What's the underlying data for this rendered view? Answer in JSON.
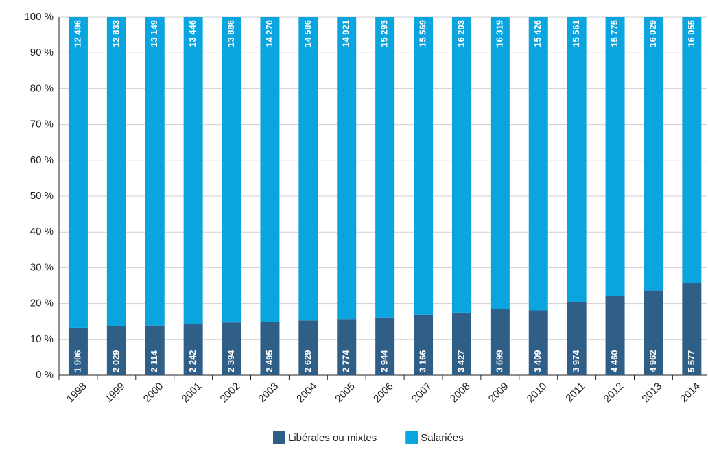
{
  "chart_data": {
    "type": "bar",
    "stacking": "percent",
    "categories": [
      "1998",
      "1999",
      "2000",
      "2001",
      "2002",
      "2003",
      "2004",
      "2005",
      "2006",
      "2007",
      "2008",
      "2009",
      "2010",
      "2011",
      "2012",
      "2013",
      "2014"
    ],
    "series": [
      {
        "name": "Libérales ou mixtes",
        "color": "#2f5f87",
        "values": [
          1906,
          2029,
          2114,
          2242,
          2394,
          2495,
          2629,
          2774,
          2944,
          3166,
          3427,
          3699,
          3409,
          3974,
          4460,
          4962,
          5577
        ],
        "value_labels": [
          "1 906",
          "2 029",
          "2 114",
          "2 242",
          "2 394",
          "2 495",
          "2 629",
          "2 774",
          "2 944",
          "3 166",
          "3 427",
          "3 699",
          "3 409",
          "3 974",
          "4 460",
          "4 962",
          "5 577"
        ]
      },
      {
        "name": "Salariées",
        "color": "#0aa5df",
        "values": [
          12496,
          12833,
          13149,
          13446,
          13886,
          14270,
          14586,
          14921,
          15293,
          15569,
          16203,
          16319,
          15426,
          15561,
          15775,
          16029,
          16055
        ],
        "value_labels": [
          "12 496",
          "12 833",
          "13 149",
          "13 446",
          "13 886",
          "14 270",
          "14 586",
          "14 921",
          "15 293",
          "15 569",
          "16 203",
          "16 319",
          "15 426",
          "15 561",
          "15 775",
          "16 029",
          "16 055"
        ]
      }
    ],
    "ylim": [
      0,
      100
    ],
    "yticks": [
      {
        "value": 0,
        "label": "0 %"
      },
      {
        "value": 10,
        "label": "10 %"
      },
      {
        "value": 20,
        "label": "20 %"
      },
      {
        "value": 30,
        "label": "30 %"
      },
      {
        "value": 40,
        "label": "40 %"
      },
      {
        "value": 50,
        "label": "50 %"
      },
      {
        "value": 60,
        "label": "60 %"
      },
      {
        "value": 70,
        "label": "70 %"
      },
      {
        "value": 80,
        "label": "80 %"
      },
      {
        "value": 90,
        "label": "90 %"
      },
      {
        "value": 100,
        "label": "100 %"
      }
    ],
    "grid": true,
    "legend": "bottom"
  }
}
